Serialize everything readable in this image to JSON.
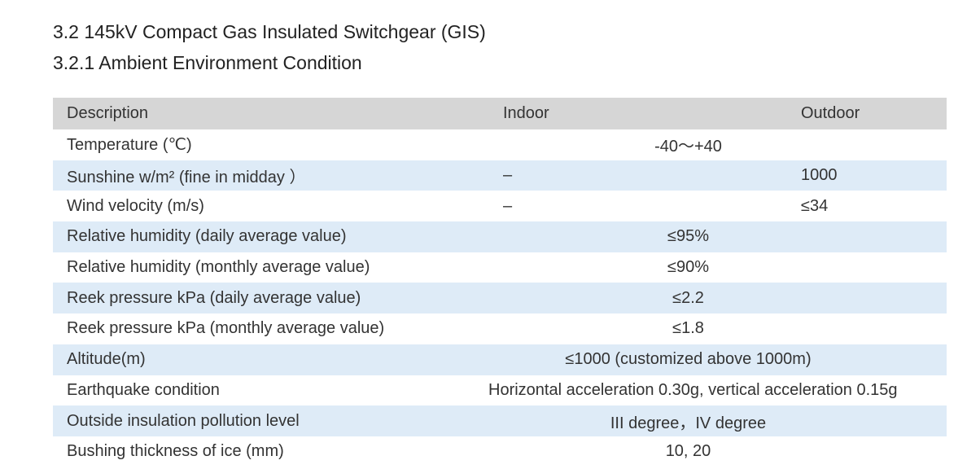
{
  "header": {
    "title": "3.2 145kV Compact Gas Insulated Switchgear (GIS)",
    "subtitle": "3.2.1 Ambient Environment Condition"
  },
  "table": {
    "columns": [
      "Description",
      "Indoor",
      "Outdoor"
    ],
    "rows": [
      {
        "description": "Temperature (℃)",
        "value": "-40～+40"
      },
      {
        "description": "Sunshine  w/m² (fine in midday ）",
        "indoor": "–",
        "outdoor": "1000"
      },
      {
        "description": "Wind velocity (m/s)",
        "indoor": "–",
        "outdoor": "≤34"
      },
      {
        "description": "Relative humidity (daily average value)",
        "value": "≤95%"
      },
      {
        "description": "Relative humidity  (monthly average value)",
        "value": "≤90%"
      },
      {
        "description": "Reek pressure kPa (daily average value)",
        "value": "≤2.2"
      },
      {
        "description": "Reek pressure kPa (monthly average value)",
        "value": "≤1.8"
      },
      {
        "description": "Altitude(m)",
        "value": "≤1000 (customized above 1000m)"
      },
      {
        "description": "Earthquake condition",
        "value": "Horizontal acceleration 0.30g, vertical acceleration 0.15g"
      },
      {
        "description": "Outside insulation pollution level",
        "value": "III degree，IV degree"
      },
      {
        "description": "Bushing thickness of ice  (mm)",
        "value": "10, 20"
      }
    ]
  }
}
